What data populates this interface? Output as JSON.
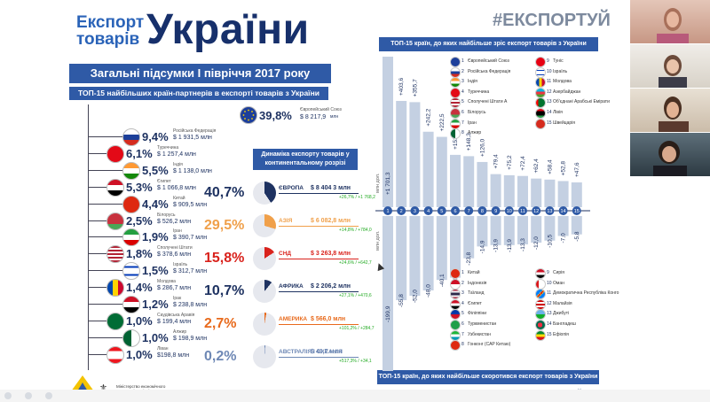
{
  "header": {
    "title_small": "Експорт товарів",
    "title_big": "України",
    "hashtag": "#ЕКСПОРТУЙ"
  },
  "summary_banner": "Загальні підсумки І півріччя 2017 року",
  "partners_bar": "ТОП-15 найбільших країн-партнерів в експорті товарів з України",
  "eu": {
    "pct": "39,8%",
    "name": "Європейський Союз",
    "value": "$ 8 217,9",
    "unit": "млн"
  },
  "countries": [
    {
      "flag": "russia-flag",
      "pct": "9,4%",
      "name": "Російська Федерація",
      "value": "$ 1 931,5 млн"
    },
    {
      "flag": "turkey-flag",
      "pct": "6,1%",
      "name": "Туреччина",
      "value": "$ 1 257,4 млн"
    },
    {
      "flag": "india-flag",
      "pct": "5,5%",
      "name": "Індія",
      "value": "$ 1 138,0 млн"
    },
    {
      "flag": "egypt-flag",
      "pct": "5,3%",
      "name": "Єгипет",
      "value": "$ 1 066,8 млн"
    },
    {
      "flag": "china-flag",
      "pct": "4,4%",
      "name": "Китай",
      "value": "$ 909,5 млн"
    },
    {
      "flag": "belarus-flag",
      "pct": "2,5%",
      "name": "Білорусь",
      "value": "$ 526,2 млн"
    },
    {
      "flag": "iran-flag",
      "pct": "1,9%",
      "name": "Іран",
      "value": "$ 390,7 млн"
    },
    {
      "flag": "usa-flag",
      "pct": "1,8%",
      "name": "Сполучені Штати",
      "value": "$ 378,6 млн"
    },
    {
      "flag": "israel-flag",
      "pct": "1,5%",
      "name": "Ізраїль",
      "value": "$ 312,7 млн"
    },
    {
      "flag": "moldova-flag",
      "pct": "1,4%",
      "name": "Молдова",
      "value": "$ 286,7 млн"
    },
    {
      "flag": "iraq-flag",
      "pct": "1,2%",
      "name": "Ірак",
      "value": "$ 238,8 млн"
    },
    {
      "flag": "saudi-flag",
      "pct": "1,0%",
      "name": "Саудівська Аравія",
      "value": "$ 199,4 млн"
    },
    {
      "flag": "algeria-flag",
      "pct": "1,0%",
      "name": "Алжир",
      "value": "$ 198,9 млн"
    },
    {
      "flag": "lebanon-flag",
      "pct": "1,0%",
      "name": "Ліван",
      "value": "$198,8 млн"
    }
  ],
  "dynamics_head": "Динаміка експорту товарів у континентальному розрізі",
  "continents": [
    {
      "pct": "40,7%",
      "name": "ЄВРОПА",
      "value": "$ 8 404 3 млн",
      "chg": "+26,7% / +1 768,2",
      "color": "#1e3261",
      "share": 0.407
    },
    {
      "pct": "29,5%",
      "name": "АЗІЯ",
      "value": "$ 6 082,8 млн",
      "chg": "+14,8% / +784,0",
      "color": "#f0a04a",
      "share": 0.295
    },
    {
      "pct": "15,8%",
      "name": "СНД",
      "value": "$ 3 263,8 млн",
      "chg": "+24,6% / +642,7",
      "color": "#d9221c",
      "share": 0.158
    },
    {
      "pct": "10,7%",
      "name": "АФРИКА",
      "value": "$ 2 206,2 млн",
      "chg": "+27,1% / +470,6",
      "color": "#1e3261",
      "share": 0.107
    },
    {
      "pct": "2,7%",
      "name": "АМЕРИКА",
      "value": "$ 566,0 млн",
      "chg": "+101,2% / +284,7",
      "color": "#e86a1c",
      "share": 0.027
    },
    {
      "pct": "0,2%",
      "name": "АВСТРАЛІЯ І ОКЕАНІЯ",
      "value": "$ 40,7 млн",
      "chg": "+517,3% / +34,1",
      "color": "#6e88b5",
      "share": 0.002
    }
  ],
  "growth_head": "ТОП-15 країн, до яких найбільше зріс експорт товарів з України",
  "decline_head": "ТОП-15 країн, до яких найбільше скоротився експорт товарів з України",
  "unit_up": "млн дол.",
  "unit_down": "млн дол.",
  "chart_data": {
    "type": "bar",
    "title": "",
    "categories": [
      "1",
      "2",
      "3",
      "4",
      "5",
      "6",
      "7",
      "8",
      "9",
      "10",
      "11",
      "12",
      "13",
      "14",
      "15"
    ],
    "series": [
      {
        "name": "growth",
        "values": [
          1701.3,
          403.6,
          355.7,
          242.2,
          222.5,
          153.4,
          148.3,
          126.0,
          79.4,
          75.2,
          72.4,
          62.4,
          58.4,
          52.8,
          47.6
        ]
      },
      {
        "name": "decline",
        "values": [
          -199.9,
          -55.8,
          -52.0,
          -48.0,
          -40.1,
          -38.4,
          -23.8,
          -14.9,
          -13.9,
          -13.9,
          -13.3,
          -12.0,
          -10.5,
          -7.0,
          -5.8
        ]
      }
    ],
    "labels_up": [
      "+1 701,3",
      "+403,6",
      "+355,7",
      "+242,2",
      "+222,5",
      "+153,4",
      "+148,3",
      "+126,0",
      "+79,4",
      "+75,2",
      "+72,4",
      "+62,4",
      "+58,4",
      "+52,8",
      "+47,6"
    ],
    "labels_down": [
      "-199,9",
      "-55,8",
      "-52,0",
      "-48,0",
      "-40,1",
      "-38,4",
      "-23,8",
      "-14,9",
      "-13,9",
      "-13,9",
      "-13,3",
      "-12,0",
      "-10,5",
      "-7,0",
      "-5,8"
    ]
  },
  "growth_legend": [
    {
      "n": "1",
      "name": "Європейський Союз",
      "flag": "eu-flag"
    },
    {
      "n": "2",
      "name": "Російська Федерація",
      "flag": "russia-flag"
    },
    {
      "n": "3",
      "name": "Індія",
      "flag": "india-flag"
    },
    {
      "n": "4",
      "name": "Туреччина",
      "flag": "turkey-flag"
    },
    {
      "n": "5",
      "name": "Сполучені Штати А",
      "flag": "usa-flag"
    },
    {
      "n": "6",
      "name": "Білорусь",
      "flag": "belarus-flag"
    },
    {
      "n": "7",
      "name": "Іран",
      "flag": "iran-flag"
    },
    {
      "n": "8",
      "name": "Алжир",
      "flag": "algeria-flag"
    },
    {
      "n": "9",
      "name": "Туніс",
      "flag": "tunisia-flag"
    },
    {
      "n": "10",
      "name": "Ізраїль",
      "flag": "israel-flag"
    },
    {
      "n": "11",
      "name": "Молдова",
      "flag": "moldova-flag"
    },
    {
      "n": "12",
      "name": "Азербайджан",
      "flag": "azerbaijan-flag"
    },
    {
      "n": "13",
      "name": "Об'єднані Арабські Емірати",
      "flag": "uae-flag"
    },
    {
      "n": "14",
      "name": "Лівія",
      "flag": "libya-flag"
    },
    {
      "n": "15",
      "name": "Швейцарія",
      "flag": "swiss-flag"
    }
  ],
  "decline_legend": [
    {
      "n": "1",
      "name": "Китай",
      "flag": "china-flag"
    },
    {
      "n": "2",
      "name": "Індонезія",
      "flag": "indonesia-flag"
    },
    {
      "n": "3",
      "name": "Таїланд",
      "flag": "thailand-flag"
    },
    {
      "n": "4",
      "name": "Єгипет",
      "flag": "egypt-flag"
    },
    {
      "n": "5",
      "name": "Філіппіни",
      "flag": "philippines-flag"
    },
    {
      "n": "6",
      "name": "Туркменистан",
      "flag": "turkmenistan-flag"
    },
    {
      "n": "7",
      "name": "Узбекистан",
      "flag": "uzbekistan-flag"
    },
    {
      "n": "8",
      "name": "Гонконг (САР Китаю)",
      "flag": "hongkong-flag"
    },
    {
      "n": "9",
      "name": "Сирія",
      "flag": "syria-flag"
    },
    {
      "n": "10",
      "name": "Оман",
      "flag": "oman-flag"
    },
    {
      "n": "11",
      "name": "Демократична Республіка Конго",
      "flag": "congo-flag"
    },
    {
      "n": "12",
      "name": "Малайзія",
      "flag": "malaysia-flag"
    },
    {
      "n": "13",
      "name": "Джибуті",
      "flag": "djibouti-flag"
    },
    {
      "n": "14",
      "name": "Бангладеш",
      "flag": "bangladesh-flag"
    },
    {
      "n": "15",
      "name": "Ефіопія",
      "flag": "ethiopia-flag"
    }
  ],
  "ministry": "Міністерство економічного розвитку і торгівлі України",
  "colors": {
    "primary": "#2f5aa6",
    "dark": "#1e3261",
    "bar": "#c4d0e2"
  }
}
